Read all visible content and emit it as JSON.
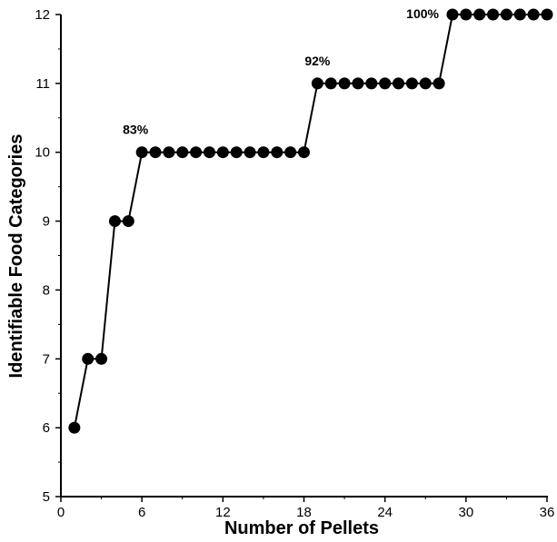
{
  "chart_data": {
    "type": "line",
    "title": "",
    "xlabel": "Number of Pellets",
    "ylabel": "Identifiable Food Categories",
    "xlim": [
      0,
      36
    ],
    "ylim": [
      5,
      12
    ],
    "xticks": [
      "0",
      "6",
      "12",
      "18",
      "24",
      "30",
      "36"
    ],
    "yticks": [
      "5",
      "6",
      "7",
      "8",
      "9",
      "10",
      "11",
      "12"
    ],
    "grid": false,
    "series": [
      {
        "x": [
          1,
          2,
          3,
          4,
          5,
          6,
          7,
          8,
          9,
          10,
          11,
          12,
          13,
          14,
          15,
          16,
          17,
          18,
          19,
          20,
          21,
          22,
          23,
          24,
          25,
          26,
          27,
          28,
          29,
          30,
          31,
          32,
          33,
          34,
          35,
          36
        ],
        "y": [
          6,
          7,
          7,
          9,
          9,
          10,
          10,
          10,
          10,
          10,
          10,
          10,
          10,
          10,
          10,
          10,
          10,
          10,
          11,
          11,
          11,
          11,
          11,
          11,
          11,
          11,
          11,
          11,
          12,
          12,
          12,
          12,
          12,
          12,
          12,
          12
        ]
      }
    ],
    "annotations": [
      {
        "text": "83%",
        "x": 6,
        "y": 10
      },
      {
        "text": "92%",
        "x": 19,
        "y": 11
      },
      {
        "text": "100%",
        "x": 29,
        "y": 12
      }
    ]
  }
}
